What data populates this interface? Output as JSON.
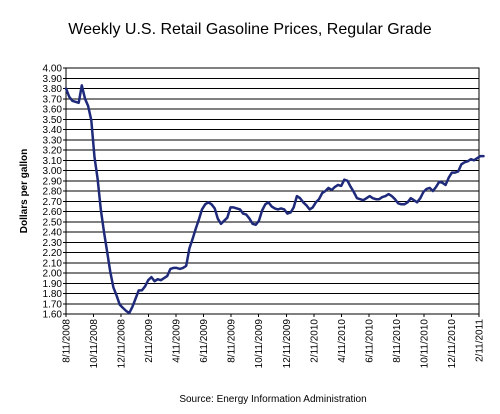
{
  "chart_data": {
    "type": "line",
    "title": "Weekly U.S. Retail Gasoline Prices, Regular Grade",
    "ylabel": "Dollars per gallon",
    "source": "Source: Energy Information Administration",
    "ylim": [
      1.6,
      4.0
    ],
    "y_ticks": [
      "1.60",
      "1.70",
      "1.80",
      "1.90",
      "2.00",
      "2.10",
      "2.20",
      "2.30",
      "2.40",
      "2.50",
      "2.60",
      "2.70",
      "2.80",
      "2.90",
      "3.00",
      "3.10",
      "3.20",
      "3.30",
      "3.40",
      "3.50",
      "3.60",
      "3.70",
      "3.80",
      "3.90",
      "4.00"
    ],
    "x_ticks": [
      "8/11/2008",
      "10/11/2008",
      "12/11/2008",
      "2/11/2009",
      "4/11/2009",
      "6/11/2009",
      "8/11/2009",
      "10/11/2009",
      "12/11/2009",
      "2/11/2010",
      "4/11/2010",
      "6/11/2010",
      "8/11/2010",
      "10/11/2010",
      "12/11/2010",
      "2/11/2011"
    ],
    "grid": true,
    "series": [
      {
        "color": "#1f2a7a",
        "points": [
          [
            "2008-08-11",
            3.8
          ],
          [
            "2008-08-18",
            3.72
          ],
          [
            "2008-08-25",
            3.68
          ],
          [
            "2008-09-01",
            3.67
          ],
          [
            "2008-09-08",
            3.66
          ],
          [
            "2008-09-15",
            3.83
          ],
          [
            "2008-09-22",
            3.7
          ],
          [
            "2008-09-29",
            3.63
          ],
          [
            "2008-10-06",
            3.49
          ],
          [
            "2008-10-13",
            3.13
          ],
          [
            "2008-10-20",
            2.92
          ],
          [
            "2008-10-27",
            2.62
          ],
          [
            "2008-11-03",
            2.4
          ],
          [
            "2008-11-10",
            2.21
          ],
          [
            "2008-11-17",
            2.01
          ],
          [
            "2008-11-24",
            1.86
          ],
          [
            "2008-12-01",
            1.78
          ],
          [
            "2008-12-08",
            1.69
          ],
          [
            "2008-12-15",
            1.66
          ],
          [
            "2008-12-22",
            1.63
          ],
          [
            "2008-12-29",
            1.61
          ],
          [
            "2009-01-05",
            1.67
          ],
          [
            "2009-01-12",
            1.75
          ],
          [
            "2009-01-19",
            1.83
          ],
          [
            "2009-01-26",
            1.83
          ],
          [
            "2009-02-02",
            1.87
          ],
          [
            "2009-02-09",
            1.93
          ],
          [
            "2009-02-16",
            1.96
          ],
          [
            "2009-02-23",
            1.92
          ],
          [
            "2009-03-02",
            1.94
          ],
          [
            "2009-03-09",
            1.93
          ],
          [
            "2009-03-16",
            1.95
          ],
          [
            "2009-03-23",
            1.97
          ],
          [
            "2009-03-30",
            2.04
          ],
          [
            "2009-04-06",
            2.05
          ],
          [
            "2009-04-13",
            2.05
          ],
          [
            "2009-04-20",
            2.04
          ],
          [
            "2009-04-27",
            2.05
          ],
          [
            "2009-05-04",
            2.07
          ],
          [
            "2009-05-11",
            2.24
          ],
          [
            "2009-05-18",
            2.33
          ],
          [
            "2009-05-25",
            2.43
          ],
          [
            "2009-06-01",
            2.52
          ],
          [
            "2009-06-08",
            2.62
          ],
          [
            "2009-06-15",
            2.67
          ],
          [
            "2009-06-22",
            2.69
          ],
          [
            "2009-06-29",
            2.67
          ],
          [
            "2009-07-06",
            2.63
          ],
          [
            "2009-07-13",
            2.53
          ],
          [
            "2009-07-20",
            2.48
          ],
          [
            "2009-07-27",
            2.51
          ],
          [
            "2009-08-03",
            2.54
          ],
          [
            "2009-08-10",
            2.64
          ],
          [
            "2009-08-17",
            2.64
          ],
          [
            "2009-08-24",
            2.63
          ],
          [
            "2009-08-31",
            2.62
          ],
          [
            "2009-09-07",
            2.58
          ],
          [
            "2009-09-14",
            2.57
          ],
          [
            "2009-09-21",
            2.53
          ],
          [
            "2009-09-28",
            2.48
          ],
          [
            "2009-10-05",
            2.47
          ],
          [
            "2009-10-12",
            2.51
          ],
          [
            "2009-10-19",
            2.61
          ],
          [
            "2009-10-26",
            2.67
          ],
          [
            "2009-11-02",
            2.69
          ],
          [
            "2009-11-09",
            2.65
          ],
          [
            "2009-11-16",
            2.63
          ],
          [
            "2009-11-23",
            2.62
          ],
          [
            "2009-11-30",
            2.63
          ],
          [
            "2009-12-07",
            2.62
          ],
          [
            "2009-12-14",
            2.58
          ],
          [
            "2009-12-21",
            2.59
          ],
          [
            "2009-12-28",
            2.64
          ],
          [
            "2010-01-04",
            2.75
          ],
          [
            "2010-01-11",
            2.73
          ],
          [
            "2010-01-18",
            2.69
          ],
          [
            "2010-01-25",
            2.66
          ],
          [
            "2010-02-01",
            2.62
          ],
          [
            "2010-02-08",
            2.64
          ],
          [
            "2010-02-15",
            2.69
          ],
          [
            "2010-02-22",
            2.72
          ],
          [
            "2010-03-01",
            2.78
          ],
          [
            "2010-03-08",
            2.8
          ],
          [
            "2010-03-15",
            2.83
          ],
          [
            "2010-03-22",
            2.81
          ],
          [
            "2010-03-29",
            2.84
          ],
          [
            "2010-04-05",
            2.86
          ],
          [
            "2010-04-12",
            2.85
          ],
          [
            "2010-04-19",
            2.91
          ],
          [
            "2010-04-26",
            2.9
          ],
          [
            "2010-05-03",
            2.84
          ],
          [
            "2010-05-10",
            2.79
          ],
          [
            "2010-05-17",
            2.73
          ],
          [
            "2010-05-24",
            2.72
          ],
          [
            "2010-05-31",
            2.71
          ],
          [
            "2010-06-07",
            2.73
          ],
          [
            "2010-06-14",
            2.75
          ],
          [
            "2010-06-21",
            2.73
          ],
          [
            "2010-06-28",
            2.72
          ],
          [
            "2010-07-05",
            2.72
          ],
          [
            "2010-07-12",
            2.74
          ],
          [
            "2010-07-19",
            2.75
          ],
          [
            "2010-07-26",
            2.77
          ],
          [
            "2010-08-02",
            2.75
          ],
          [
            "2010-08-09",
            2.72
          ],
          [
            "2010-08-16",
            2.68
          ],
          [
            "2010-08-23",
            2.67
          ],
          [
            "2010-08-30",
            2.67
          ],
          [
            "2010-09-06",
            2.69
          ],
          [
            "2010-09-13",
            2.73
          ],
          [
            "2010-09-20",
            2.71
          ],
          [
            "2010-09-27",
            2.69
          ],
          [
            "2010-10-04",
            2.73
          ],
          [
            "2010-10-11",
            2.79
          ],
          [
            "2010-10-18",
            2.82
          ],
          [
            "2010-10-25",
            2.83
          ],
          [
            "2010-11-01",
            2.8
          ],
          [
            "2010-11-08",
            2.84
          ],
          [
            "2010-11-15",
            2.89
          ],
          [
            "2010-11-22",
            2.88
          ],
          [
            "2010-11-29",
            2.86
          ],
          [
            "2010-12-06",
            2.93
          ],
          [
            "2010-12-13",
            2.98
          ],
          [
            "2010-12-20",
            2.98
          ],
          [
            "2010-12-27",
            2.99
          ],
          [
            "2011-01-03",
            3.06
          ],
          [
            "2011-01-10",
            3.08
          ],
          [
            "2011-01-17",
            3.09
          ],
          [
            "2011-01-24",
            3.11
          ],
          [
            "2011-01-31",
            3.1
          ],
          [
            "2011-02-07",
            3.12
          ],
          [
            "2011-02-14",
            3.14
          ],
          [
            "2011-02-21",
            3.14
          ]
        ]
      }
    ]
  }
}
